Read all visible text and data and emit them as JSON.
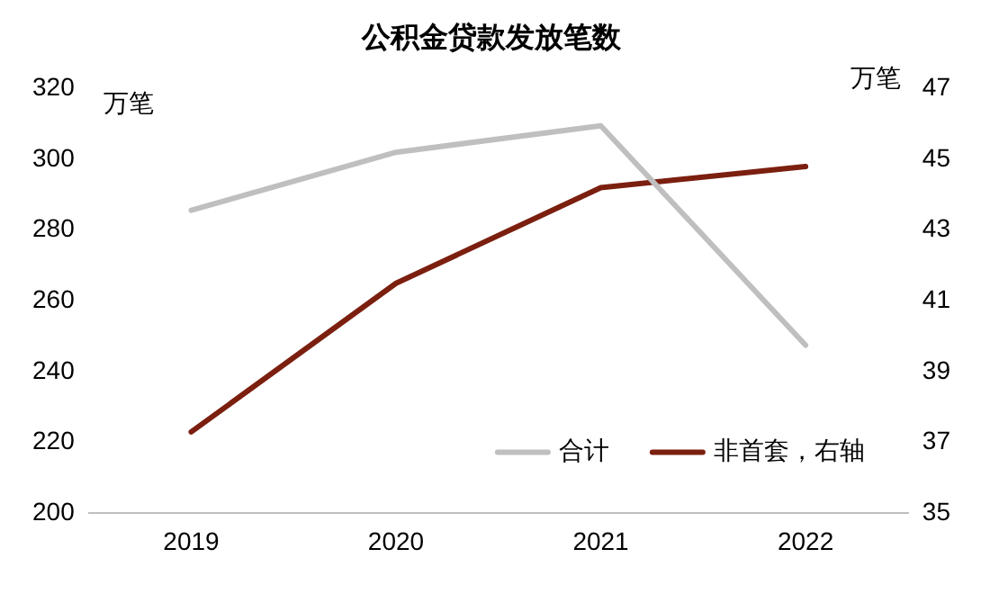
{
  "chart_data": {
    "type": "line",
    "title": "公积金贷款发放笔数",
    "ylabel": "万笔",
    "y2label": "万笔",
    "categories": [
      "2019",
      "2020",
      "2021",
      "2022"
    ],
    "series": [
      {
        "name": "合计",
        "color": "#bfbfbf",
        "values": [
          285.6,
          302,
          309.5,
          247.5
        ]
      },
      {
        "name": "非首套，右轴",
        "color": "#7b1f0f",
        "axis": "y2",
        "values": [
          37.3,
          41.5,
          44.2,
          44.8
        ]
      }
    ],
    "ylim": [
      200,
      320
    ],
    "yticks": [
      200,
      220,
      240,
      260,
      280,
      300,
      320
    ],
    "y2lim": [
      35,
      47
    ],
    "y2ticks": [
      35,
      37,
      39,
      41,
      43,
      45,
      47
    ],
    "grid": false,
    "legend": "bottom right",
    "marker": "none",
    "line_style": "solid"
  }
}
